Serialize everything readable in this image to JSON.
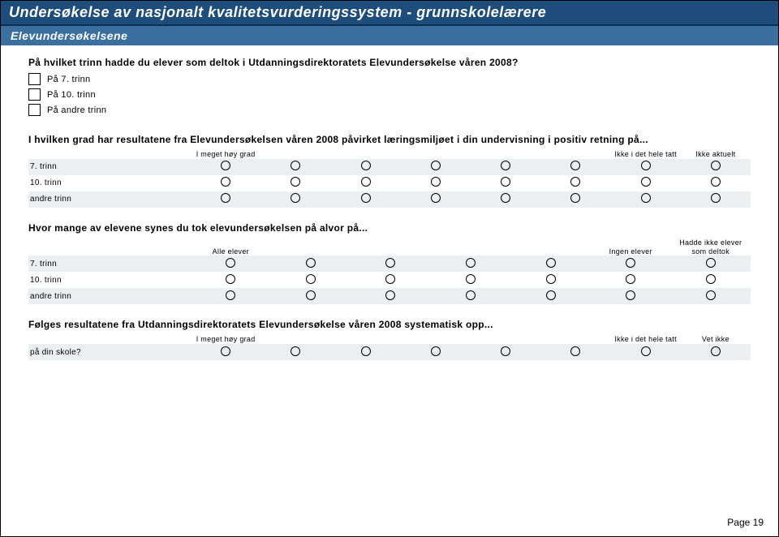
{
  "title": "Undersøkelse av nasjonalt kvalitetsvurderingssystem - grunnskolelærere",
  "subtitle": "Elevundersøkelsene",
  "q1": {
    "text": "På hvilket trinn hadde du elever som deltok i Utdanningsdirektoratets Elevundersøkelse våren 2008?",
    "options": [
      "På 7. trinn",
      "På 10. trinn",
      "På andre trinn"
    ]
  },
  "q2": {
    "text": "I hvilken grad har resultatene fra Elevundersøkelsen våren 2008 påvirket læringsmiljøet i din undervisning i positiv retning på...",
    "col_left": "I meget høy grad",
    "col_right": "Ikke i det hele tatt",
    "col_extra": "Ikke aktuelt",
    "rows": [
      "7. trinn",
      "10. trinn",
      "andre trinn"
    ],
    "n_scale": 6
  },
  "q3": {
    "text": "Hvor mange av elevene synes du tok elevundersøkelsen på alvor på...",
    "col_left": "Alle elever",
    "col_right": "Ingen elever",
    "col_extra": "Hadde ikke elever som deltok",
    "rows": [
      "7. trinn",
      "10. trinn",
      "andre trinn"
    ],
    "n_scale": 5
  },
  "q4": {
    "text": "Følges resultatene fra Utdanningsdirektoratets Elevundersøkelse våren 2008 systematisk opp...",
    "col_left": "I meget høy grad",
    "col_right": "Ikke i det hele tatt",
    "col_extra": "Vet ikke",
    "rows": [
      "på din skole?"
    ],
    "n_scale": 6
  },
  "footer": "Page 19",
  "colors": {
    "title_bg": "#1e4d7b",
    "subtitle_bg": "#3a6fa0",
    "shade": "#eceff1"
  }
}
